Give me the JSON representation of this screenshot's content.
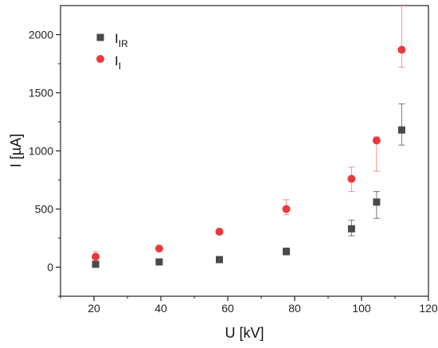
{
  "chart_data": {
    "type": "scatter",
    "title": "",
    "xlabel": "U [kV]",
    "ylabel": "I [µA]",
    "xlim": [
      10,
      120
    ],
    "ylim": [
      -250,
      2250
    ],
    "x_ticks": [
      "20",
      "40",
      "60",
      "80",
      "100",
      "120"
    ],
    "y_ticks": [
      "0",
      "500",
      "1000",
      "1500",
      "2000"
    ],
    "grid": false,
    "legend_position": "top-left",
    "series": [
      {
        "name": "I_IR",
        "label_main": "I",
        "label_sub": "IR",
        "marker": "square",
        "color": "#4a4a4a",
        "points": [
          {
            "x": 20.5,
            "y": 25,
            "err_low": 0,
            "err_high": 0
          },
          {
            "x": 39.5,
            "y": 45,
            "err_low": 0,
            "err_high": 0
          },
          {
            "x": 57.5,
            "y": 65,
            "err_low": 0,
            "err_high": 0
          },
          {
            "x": 77.5,
            "y": 135,
            "err_low": 30,
            "err_high": 30
          },
          {
            "x": 97,
            "y": 330,
            "err_low": 60,
            "err_high": 75
          },
          {
            "x": 104.5,
            "y": 560,
            "err_low": 140,
            "err_high": 90
          },
          {
            "x": 112,
            "y": 1180,
            "err_low": 130,
            "err_high": 225
          }
        ]
      },
      {
        "name": "I_I",
        "label_main": "I",
        "label_sub": "I",
        "marker": "circle",
        "color": "#e8393f",
        "points": [
          {
            "x": 20.5,
            "y": 90,
            "err_low": 20,
            "err_high": 45
          },
          {
            "x": 39.5,
            "y": 160,
            "err_low": 10,
            "err_high": 10
          },
          {
            "x": 57.5,
            "y": 305,
            "err_low": 0,
            "err_high": 0
          },
          {
            "x": 77.5,
            "y": 500,
            "err_low": 50,
            "err_high": 80
          },
          {
            "x": 97,
            "y": 760,
            "err_low": 110,
            "err_high": 100
          },
          {
            "x": 104.5,
            "y": 1090,
            "err_low": 265,
            "err_high": 30
          },
          {
            "x": 112,
            "y": 1870,
            "err_low": 150,
            "err_high": 380
          }
        ]
      }
    ]
  }
}
